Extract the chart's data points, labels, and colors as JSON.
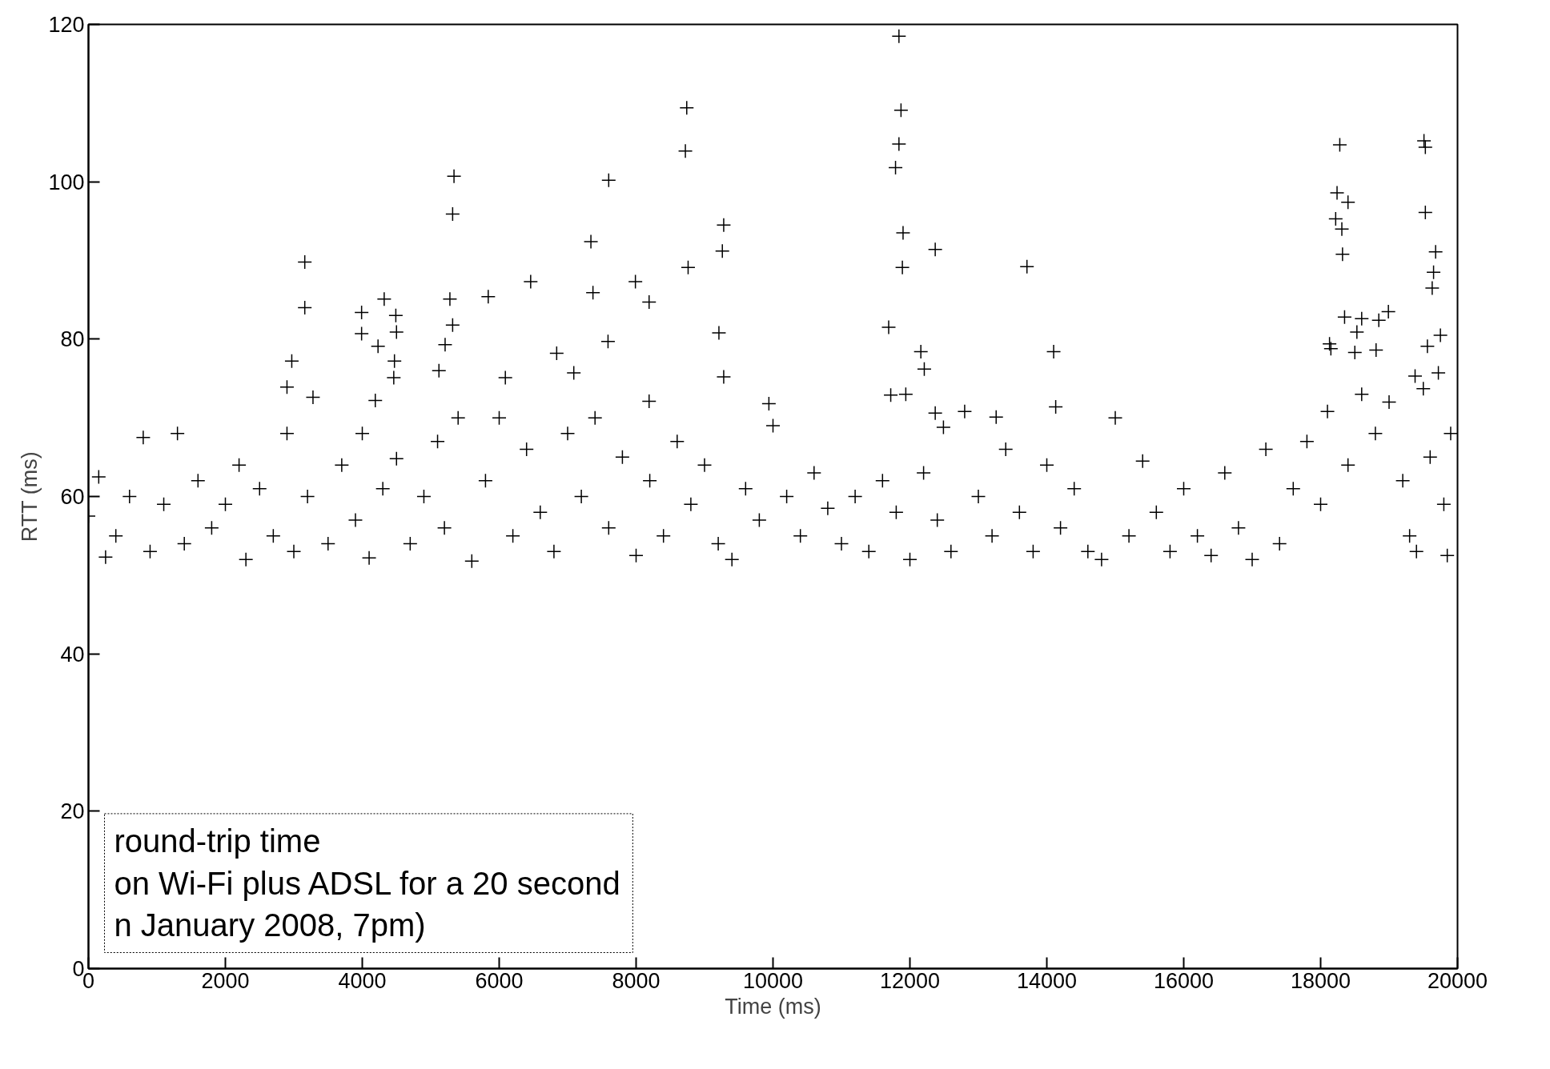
{
  "chart_data": {
    "type": "scatter",
    "xlabel": "Time (ms)",
    "ylabel": "RTT (ms)",
    "xlim": [
      0,
      20000
    ],
    "ylim": [
      0,
      120
    ],
    "xticks": [
      0,
      2000,
      4000,
      6000,
      8000,
      10000,
      12000,
      14000,
      16000,
      18000,
      20000
    ],
    "yticks": [
      0,
      20,
      40,
      60,
      80,
      100,
      120
    ],
    "marker": "cross",
    "annotations": [
      "round-trip time\non Wi-Fi plus ADSL for a 20 second\nn January 2008, 7pm)"
    ],
    "series": [
      {
        "color": "#000000",
        "x": [
          2970,
          2900,
          3160,
          3160,
          3280,
          3990,
          3990,
          4320,
          4230,
          4490,
          4500,
          4470,
          4460,
          4190,
          5340,
          5320,
          5280,
          5320,
          5210,
          5120,
          5840,
          6090,
          6460,
          6840,
          7090,
          7340,
          7370,
          7590,
          7600,
          7990,
          8190,
          8190,
          8740,
          8720,
          8760,
          9260,
          9280,
          9210,
          9280,
          9940,
          11840,
          11870,
          11840,
          11790,
          11900,
          11890,
          11690,
          11720,
          11940,
          12160,
          12210,
          12370,
          12370,
          12490,
          13710,
          14100,
          14130,
          13260,
          18280,
          18240,
          18400,
          18220,
          18310,
          18320,
          18350,
          18130,
          18150,
          18600,
          18850,
          18990,
          18530,
          18810,
          18500,
          19510,
          19530,
          19530,
          19680,
          19650,
          19630,
          19750,
          19560,
          19720,
          19380,
          19500,
          0,
          150,
          250,
          400,
          600,
          800,
          900,
          1100,
          1300,
          1400,
          1600,
          1800,
          2000,
          2200,
          2300,
          2500,
          2700,
          2900,
          3000,
          3200,
          3500,
          3700,
          3900,
          4000,
          4100,
          4300,
          4500,
          4700,
          4900,
          5100,
          5200,
          5400,
          5600,
          5800,
          6000,
          6200,
          6400,
          6600,
          6800,
          7000,
          7200,
          7400,
          7600,
          7800,
          8000,
          8200,
          8400,
          8600,
          8800,
          9000,
          9200,
          9400,
          9600,
          9800,
          10000,
          10200,
          10400,
          10600,
          10800,
          11000,
          11200,
          11400,
          11600,
          11800,
          12000,
          12200,
          12400,
          12600,
          12800,
          13000,
          13200,
          13400,
          13600,
          13800,
          14000,
          14200,
          14400,
          14600,
          14800,
          15000,
          15200,
          15400,
          15600,
          15800,
          16000,
          16200,
          16400,
          16600,
          16800,
          17000,
          17200,
          17400,
          17600,
          17800,
          18000,
          18100,
          18400,
          18600,
          18800,
          19000,
          19200,
          19300,
          19400,
          19600,
          19800,
          19850,
          19900
        ],
        "values": [
          77.2,
          73.9,
          89.8,
          84.0,
          72.6,
          83.4,
          80.7,
          85.1,
          79.1,
          83.0,
          80.9,
          77.2,
          75.1,
          72.2,
          100.7,
          95.9,
          85.1,
          81.8,
          79.3,
          76.0,
          85.4,
          75.1,
          87.3,
          78.2,
          75.7,
          92.4,
          85.9,
          79.7,
          100.2,
          87.3,
          84.7,
          72.1,
          109.4,
          103.9,
          89.1,
          91.2,
          94.5,
          80.8,
          75.2,
          71.8,
          118.5,
          109.1,
          104.8,
          101.8,
          93.5,
          89.1,
          81.5,
          72.9,
          73.0,
          78.4,
          76.2,
          91.4,
          70.6,
          68.8,
          89.2,
          78.4,
          71.4,
          70.1,
          104.7,
          98.6,
          97.4,
          95.3,
          94.0,
          90.8,
          82.8,
          79.4,
          78.8,
          82.6,
          82.4,
          83.5,
          80.9,
          78.6,
          78.3,
          105.2,
          104.4,
          96.1,
          91.1,
          88.5,
          86.5,
          80.5,
          79.1,
          75.7,
          75.3,
          73.7,
          57.5,
          62.5,
          52.3,
          55,
          60,
          67.5,
          53,
          59,
          68,
          54,
          62,
          56,
          59,
          64,
          52,
          61,
          55,
          68,
          53,
          60,
          54,
          64,
          57,
          68,
          52.2,
          61,
          64.8,
          54,
          60,
          67,
          56,
          70,
          51.8,
          62,
          70,
          55,
          66,
          58,
          53,
          68,
          60,
          70,
          56,
          65,
          52.5,
          62,
          55,
          67,
          59,
          64,
          54,
          52,
          61,
          57,
          69,
          60,
          55,
          63,
          58.5,
          54,
          60,
          53,
          62,
          58,
          52,
          63,
          57,
          53,
          70.8,
          60,
          55,
          66,
          58,
          53,
          64,
          56,
          61,
          53,
          52,
          70,
          55,
          64.5,
          58,
          53,
          61,
          55,
          52.5,
          63,
          56,
          52,
          66,
          54,
          61,
          67,
          59,
          70.8,
          64,
          73,
          68,
          72,
          62,
          55,
          53,
          65,
          59,
          52.5,
          68
        ]
      }
    ]
  }
}
